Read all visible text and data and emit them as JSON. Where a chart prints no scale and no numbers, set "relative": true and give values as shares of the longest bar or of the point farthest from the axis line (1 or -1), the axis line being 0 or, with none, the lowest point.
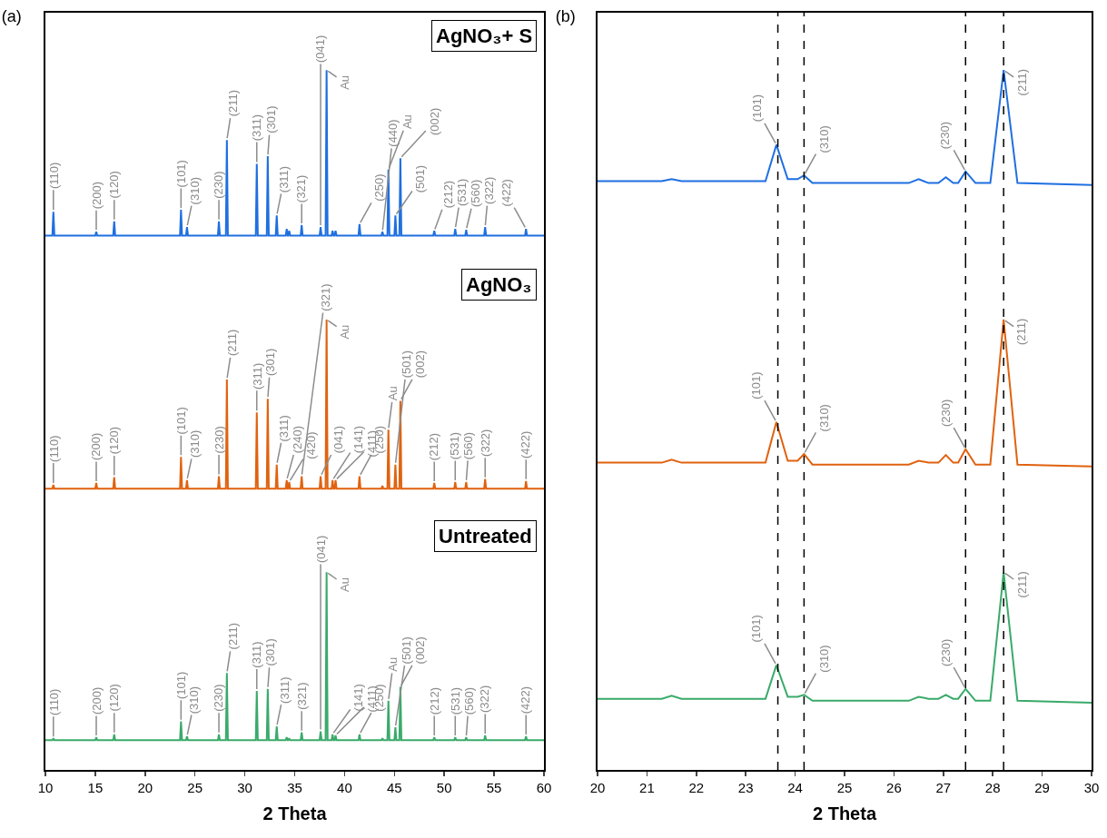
{
  "chart_data": [
    {
      "type": "line",
      "title": "(a)",
      "relative": true,
      "xlim": [
        10,
        60
      ],
      "xticks": [
        10,
        15,
        20,
        25,
        30,
        35,
        40,
        45,
        50,
        55,
        60
      ],
      "tick_labels": false,
      "x": [
        10,
        10.7,
        10.8,
        10.9,
        15,
        15.1,
        15.2,
        16.8,
        16.9,
        17,
        23.5,
        23.6,
        23.7,
        24.1,
        24.2,
        24.3,
        27.3,
        27.4,
        27.5,
        28.1,
        28.2,
        28.3,
        31.1,
        31.2,
        31.3,
        32.2,
        32.3,
        32.4,
        33.1,
        33.2,
        33.3,
        34.1,
        34.2,
        34.3,
        34.35,
        34.45,
        34.55,
        35.6,
        35.7,
        35.8,
        37.5,
        37.6,
        37.7,
        38.1,
        38.2,
        38.3,
        38.7,
        38.8,
        38.9,
        39,
        39.1,
        39.2,
        41.4,
        41.5,
        41.6,
        43.7,
        43.8,
        43.9,
        44.3,
        44.4,
        44.5,
        45,
        45.1,
        45.2,
        45.5,
        45.6,
        45.7,
        48.9,
        49,
        49.1,
        51,
        51.1,
        51.2,
        52.1,
        52.2,
        52.3,
        54,
        54.1,
        54.2,
        58.1,
        58.2,
        58.3,
        60
      ],
      "series": [
        {
          "color": "#1f6fe0",
          "values": [
            0.135,
            0.135,
            0.26,
            0.135,
            0.135,
            0.155,
            0.135,
            0.135,
            0.21,
            0.135,
            0.135,
            0.27,
            0.135,
            0.135,
            0.18,
            0.135,
            0.135,
            0.21,
            0.135,
            0.135,
            0.635,
            0.135,
            0.135,
            0.51,
            0.135,
            0.135,
            0.55,
            0.135,
            0.135,
            0.24,
            0.135,
            0.135,
            0.17,
            0.135,
            0.135,
            0.16,
            0.135,
            0.135,
            0.19,
            0.135,
            0.135,
            0.18,
            0.135,
            0.135,
            1,
            0.135,
            0.135,
            0.16,
            0.135,
            0.135,
            0.16,
            0.135,
            0.135,
            0.195,
            0.135,
            0.135,
            0.155,
            0.135,
            0.135,
            0.48,
            0.135,
            0.135,
            0.24,
            0.135,
            0.135,
            0.54,
            0.135,
            0.135,
            0.16,
            0.135,
            0.135,
            0.17,
            0.135,
            0.135,
            0.165,
            0.135,
            0.135,
            0.18,
            0.135,
            0.135,
            0.17,
            0.135,
            0.135
          ]
        }
      ],
      "annotations": [
        "AgNO₃+ S",
        {
          "text": "(110)",
          "x": 10.8,
          "y": 0.26
        },
        {
          "text": "(200)",
          "x": 15.1,
          "y": 0.155
        },
        {
          "text": "(120)",
          "x": 16.9,
          "y": 0.21
        },
        {
          "text": "(101)",
          "x": 23.6,
          "y": 0.27
        },
        {
          "text": "(310)",
          "x": 24.2,
          "y": 0.18
        },
        {
          "text": "(230)",
          "x": 27.4,
          "y": 0.21
        },
        {
          "text": "(211)",
          "x": 28.2,
          "y": 0.635
        },
        {
          "text": "(311)",
          "x": 31.2,
          "y": 0.51
        },
        {
          "text": "(301)",
          "x": 32.3,
          "y": 0.55
        },
        {
          "text": "(311)",
          "x": 33.2,
          "y": 0.24
        },
        {
          "text": "(321)",
          "x": 35.7,
          "y": 0.19
        },
        {
          "text": "(041)",
          "x": 37.6,
          "y": 0.18
        },
        {
          "text": "Au",
          "x": 38.2,
          "y": 1
        },
        {
          "text": "(250)",
          "x": 41.5,
          "y": 0.195
        },
        {
          "text": "(440)",
          "x": 43.8,
          "y": 0.155
        },
        {
          "text": "Au",
          "x": 44.4,
          "y": 0.48
        },
        {
          "text": "(501)",
          "x": 45.1,
          "y": 0.24
        },
        {
          "text": "(002)",
          "x": 45.6,
          "y": 0.54
        },
        {
          "text": "(212)",
          "x": 49,
          "y": 0.16
        },
        {
          "text": "(531)",
          "x": 51.1,
          "y": 0.17
        },
        {
          "text": "(560)",
          "x": 52.2,
          "y": 0.165
        },
        {
          "text": "(322)",
          "x": 54.1,
          "y": 0.18
        },
        {
          "text": "(422)",
          "x": 58.2,
          "y": 0.17
        }
      ]
    },
    {
      "type": "line",
      "relative": true,
      "xlim": [
        10,
        60
      ],
      "xticks": [
        10,
        15,
        20,
        25,
        30,
        35,
        40,
        45,
        50,
        55,
        60
      ],
      "tick_labels": false,
      "x": [
        10,
        10.7,
        10.8,
        10.9,
        15,
        15.1,
        15.2,
        16.8,
        16.9,
        17,
        23.5,
        23.6,
        23.7,
        24.1,
        24.2,
        24.3,
        27.3,
        27.4,
        27.5,
        28.1,
        28.2,
        28.3,
        31.1,
        31.2,
        31.3,
        32.2,
        32.3,
        32.4,
        33.1,
        33.2,
        33.3,
        34.1,
        34.2,
        34.3,
        34.35,
        34.45,
        34.55,
        35.6,
        35.7,
        35.8,
        37.5,
        37.6,
        37.7,
        38.1,
        38.2,
        38.3,
        38.7,
        38.8,
        38.9,
        39,
        39.1,
        39.2,
        41.4,
        41.5,
        41.6,
        43.7,
        43.8,
        43.9,
        44.3,
        44.4,
        44.5,
        45,
        45.1,
        45.2,
        45.5,
        45.6,
        45.7,
        48.9,
        49,
        49.1,
        51,
        51.1,
        51.2,
        52.1,
        52.2,
        52.3,
        54,
        54.1,
        54.2,
        58.1,
        58.2,
        58.3,
        60
      ],
      "series": [
        {
          "color": "#e0620f",
          "values": [
            0.125,
            0.125,
            0.145,
            0.125,
            0.125,
            0.155,
            0.125,
            0.125,
            0.185,
            0.125,
            0.125,
            0.29,
            0.125,
            0.125,
            0.17,
            0.125,
            0.125,
            0.19,
            0.125,
            0.125,
            0.69,
            0.125,
            0.125,
            0.52,
            0.125,
            0.125,
            0.59,
            0.125,
            0.125,
            0.25,
            0.125,
            0.125,
            0.17,
            0.125,
            0.125,
            0.16,
            0.125,
            0.125,
            0.19,
            0.125,
            0.125,
            0.19,
            0.125,
            0.125,
            1,
            0.125,
            0.125,
            0.17,
            0.125,
            0.125,
            0.17,
            0.125,
            0.125,
            0.19,
            0.125,
            0.125,
            0.14,
            0.125,
            0.125,
            0.43,
            0.125,
            0.125,
            0.25,
            0.125,
            0.125,
            0.58,
            0.125,
            0.125,
            0.155,
            0.125,
            0.125,
            0.16,
            0.125,
            0.125,
            0.16,
            0.125,
            0.125,
            0.175,
            0.125,
            0.125,
            0.165,
            0.125,
            0.125
          ]
        }
      ],
      "annotations": [
        "AgNO₃",
        {
          "text": "(110)",
          "x": 10.8,
          "y": 0.145
        },
        {
          "text": "(200)",
          "x": 15.1,
          "y": 0.155
        },
        {
          "text": "(120)",
          "x": 16.9,
          "y": 0.185
        },
        {
          "text": "(101)",
          "x": 23.6,
          "y": 0.29
        },
        {
          "text": "(310)",
          "x": 24.2,
          "y": 0.17
        },
        {
          "text": "(230)",
          "x": 27.4,
          "y": 0.19
        },
        {
          "text": "(211)",
          "x": 28.2,
          "y": 0.69
        },
        {
          "text": "(311)",
          "x": 31.2,
          "y": 0.52
        },
        {
          "text": "(301)",
          "x": 32.3,
          "y": 0.59
        },
        {
          "text": "(311)",
          "x": 33.2,
          "y": 0.25
        },
        {
          "text": "(240)",
          "x": 34.2,
          "y": 0.17
        },
        {
          "text": "(420)",
          "x": 34.45,
          "y": 0.16
        },
        {
          "text": "(321)",
          "x": 35.7,
          "y": 0.19
        },
        {
          "text": "(041)",
          "x": 37.6,
          "y": 0.19
        },
        {
          "text": "Au",
          "x": 38.2,
          "y": 1
        },
        {
          "text": "(141)",
          "x": 38.8,
          "y": 0.17
        },
        {
          "text": "(411)",
          "x": 39.1,
          "y": 0.17
        },
        {
          "text": "(250)",
          "x": 41.5,
          "y": 0.19
        },
        {
          "text": "Au",
          "x": 44.4,
          "y": 0.43
        },
        {
          "text": "(501)",
          "x": 45.1,
          "y": 0.25
        },
        {
          "text": "(002)",
          "x": 45.6,
          "y": 0.58
        },
        {
          "text": "(212)",
          "x": 49,
          "y": 0.155
        },
        {
          "text": "(531)",
          "x": 51.1,
          "y": 0.16
        },
        {
          "text": "(560)",
          "x": 52.2,
          "y": 0.16
        },
        {
          "text": "(322)",
          "x": 54.1,
          "y": 0.175
        },
        {
          "text": "(422)",
          "x": 58.2,
          "y": 0.165
        }
      ]
    },
    {
      "type": "line",
      "relative": true,
      "xlabel": "2 Theta",
      "xlim": [
        10,
        60
      ],
      "xticks": [
        10,
        15,
        20,
        25,
        30,
        35,
        40,
        45,
        50,
        55,
        60
      ],
      "tick_labels": "x",
      "x": [
        10,
        10.7,
        10.8,
        10.9,
        15,
        15.1,
        15.2,
        16.8,
        16.9,
        17,
        23.5,
        23.6,
        23.7,
        24.1,
        24.2,
        24.3,
        27.3,
        27.4,
        27.5,
        28.1,
        28.2,
        28.3,
        31.1,
        31.2,
        31.3,
        32.2,
        32.3,
        32.4,
        33.1,
        33.2,
        33.3,
        34.1,
        34.2,
        34.3,
        34.35,
        34.45,
        34.55,
        35.6,
        35.7,
        35.8,
        37.5,
        37.6,
        37.7,
        38.1,
        38.2,
        38.3,
        38.7,
        38.8,
        38.9,
        39,
        39.1,
        39.2,
        41.4,
        41.5,
        41.6,
        43.7,
        43.8,
        43.9,
        44.3,
        44.4,
        44.5,
        45,
        45.1,
        45.2,
        45.5,
        45.6,
        45.7,
        48.9,
        49,
        49.1,
        51,
        51.1,
        51.2,
        52.1,
        52.2,
        52.3,
        54,
        54.1,
        54.2,
        58.1,
        58.2,
        58.3,
        60
      ],
      "series": [
        {
          "color": "#3aaa6a",
          "values": [
            0.15,
            0.15,
            0.16,
            0.15,
            0.15,
            0.165,
            0.15,
            0.15,
            0.18,
            0.15,
            0.15,
            0.245,
            0.15,
            0.15,
            0.17,
            0.15,
            0.15,
            0.18,
            0.15,
            0.15,
            0.49,
            0.15,
            0.15,
            0.4,
            0.15,
            0.15,
            0.41,
            0.15,
            0.15,
            0.22,
            0.15,
            0.15,
            0.165,
            0.15,
            0.15,
            0.16,
            0.15,
            0.15,
            0.19,
            0.15,
            0.15,
            0.195,
            0.15,
            0.15,
            1,
            0.15,
            0.15,
            0.18,
            0.15,
            0.15,
            0.175,
            0.15,
            0.15,
            0.18,
            0.15,
            0.15,
            0.16,
            0.15,
            0.15,
            0.35,
            0.15,
            0.15,
            0.215,
            0.15,
            0.15,
            0.42,
            0.15,
            0.15,
            0.165,
            0.15,
            0.15,
            0.165,
            0.15,
            0.15,
            0.165,
            0.15,
            0.15,
            0.175,
            0.15,
            0.15,
            0.17,
            0.15,
            0.15
          ]
        }
      ],
      "annotations": [
        "Untreated",
        {
          "text": "(110)",
          "x": 10.8,
          "y": 0.16
        },
        {
          "text": "(200)",
          "x": 15.1,
          "y": 0.165
        },
        {
          "text": "(120)",
          "x": 16.9,
          "y": 0.18
        },
        {
          "text": "(101)",
          "x": 23.6,
          "y": 0.245
        },
        {
          "text": "(310)",
          "x": 24.2,
          "y": 0.17
        },
        {
          "text": "(230)",
          "x": 27.4,
          "y": 0.18
        },
        {
          "text": "(211)",
          "x": 28.2,
          "y": 0.49
        },
        {
          "text": "(311)",
          "x": 31.2,
          "y": 0.4
        },
        {
          "text": "(301)",
          "x": 32.3,
          "y": 0.41
        },
        {
          "text": "(311)",
          "x": 33.2,
          "y": 0.22
        },
        {
          "text": "(321)",
          "x": 35.7,
          "y": 0.19
        },
        {
          "text": "(041)",
          "x": 37.6,
          "y": 0.195
        },
        {
          "text": "Au",
          "x": 38.2,
          "y": 1
        },
        {
          "text": "(141)",
          "x": 38.8,
          "y": 0.18
        },
        {
          "text": "(411)",
          "x": 39.1,
          "y": 0.175
        },
        {
          "text": "(250)",
          "x": 41.5,
          "y": 0.18
        },
        {
          "text": "Au",
          "x": 44.4,
          "y": 0.35
        },
        {
          "text": "(501)",
          "x": 45.1,
          "y": 0.215
        },
        {
          "text": "(002)",
          "x": 45.6,
          "y": 0.42
        },
        {
          "text": "(212)",
          "x": 49,
          "y": 0.165
        },
        {
          "text": "(531)",
          "x": 51.1,
          "y": 0.165
        },
        {
          "text": "(560)",
          "x": 52.2,
          "y": 0.165
        },
        {
          "text": "(322)",
          "x": 54.1,
          "y": 0.175
        },
        {
          "text": "(422)",
          "x": 58.2,
          "y": 0.17
        }
      ]
    },
    {
      "type": "line",
      "title": "(b)",
      "relative": true,
      "xlim": [
        20,
        30
      ],
      "xticks": [
        20,
        21,
        22,
        23,
        24,
        25,
        26,
        27,
        28,
        29,
        30
      ],
      "tick_labels": false,
      "x": [
        20,
        21.3,
        21.5,
        21.7,
        23.4,
        23.62,
        23.85,
        24.05,
        24.18,
        24.35,
        26.3,
        26.5,
        26.7,
        26.9,
        27.05,
        27.2,
        27.3,
        27.45,
        27.65,
        27.95,
        28.22,
        28.5,
        30
      ],
      "series": [
        {
          "color": "#1f6fe0",
          "values": [
            0.42,
            0.42,
            0.43,
            0.42,
            0.42,
            0.61,
            0.43,
            0.43,
            0.45,
            0.41,
            0.41,
            0.43,
            0.41,
            0.41,
            0.44,
            0.41,
            0.41,
            0.47,
            0.41,
            0.41,
            1,
            0.41,
            0.4
          ]
        }
      ],
      "ref_lines": [
        {
          "axis": "x",
          "value": 23.65,
          "color": "#000000",
          "line_style": "dashed"
        },
        {
          "axis": "x",
          "value": 24.18,
          "color": "#000000",
          "line_style": "dashed"
        },
        {
          "axis": "x",
          "value": 27.45,
          "color": "#000000",
          "line_style": "dashed"
        },
        {
          "axis": "x",
          "value": 28.22,
          "color": "#000000",
          "line_style": "dashed"
        }
      ],
      "annotations": [
        {
          "text": "(101)",
          "x": 23.62,
          "y": 0.61
        },
        {
          "text": "(310)",
          "x": 24.18,
          "y": 0.45
        },
        {
          "text": "(230)",
          "x": 27.45,
          "y": 0.47
        },
        {
          "text": "(211)",
          "x": 28.22,
          "y": 1
        }
      ]
    },
    {
      "type": "line",
      "relative": true,
      "xlim": [
        20,
        30
      ],
      "xticks": [
        20,
        21,
        22,
        23,
        24,
        25,
        26,
        27,
        28,
        29,
        30
      ],
      "tick_labels": false,
      "x": [
        20,
        21.3,
        21.5,
        21.7,
        23.4,
        23.62,
        23.85,
        24.05,
        24.18,
        24.35,
        26.3,
        26.5,
        26.7,
        26.9,
        27.05,
        27.2,
        27.3,
        27.45,
        27.65,
        27.95,
        28.22,
        28.5,
        30
      ],
      "series": [
        {
          "color": "#e0620f",
          "values": [
            0.26,
            0.26,
            0.275,
            0.26,
            0.26,
            0.47,
            0.27,
            0.27,
            0.305,
            0.25,
            0.25,
            0.27,
            0.26,
            0.26,
            0.3,
            0.26,
            0.26,
            0.33,
            0.25,
            0.25,
            1,
            0.25,
            0.24
          ]
        }
      ],
      "ref_lines": [
        {
          "axis": "x",
          "value": 23.65,
          "color": "#000000",
          "line_style": "dashed"
        },
        {
          "axis": "x",
          "value": 24.18,
          "color": "#000000",
          "line_style": "dashed"
        },
        {
          "axis": "x",
          "value": 27.45,
          "color": "#000000",
          "line_style": "dashed"
        },
        {
          "axis": "x",
          "value": 28.22,
          "color": "#000000",
          "line_style": "dashed"
        }
      ],
      "annotations": [
        {
          "text": "(101)",
          "x": 23.62,
          "y": 0.47
        },
        {
          "text": "(310)",
          "x": 24.18,
          "y": 0.305
        },
        {
          "text": "(230)",
          "x": 27.45,
          "y": 0.33
        },
        {
          "text": "(211)",
          "x": 28.22,
          "y": 1
        }
      ]
    },
    {
      "type": "line",
      "relative": true,
      "xlabel": "2 Theta",
      "xlim": [
        20,
        30
      ],
      "xticks": [
        20,
        21,
        22,
        23,
        24,
        25,
        26,
        27,
        28,
        29,
        30
      ],
      "tick_labels": "x",
      "x": [
        20,
        21.3,
        21.5,
        21.7,
        23.4,
        23.62,
        23.85,
        24.05,
        24.18,
        24.35,
        26.3,
        26.5,
        26.7,
        26.9,
        27.05,
        27.2,
        27.3,
        27.45,
        27.65,
        27.95,
        28.22,
        28.5,
        30
      ],
      "series": [
        {
          "color": "#3aaa6a",
          "values": [
            0.36,
            0.36,
            0.375,
            0.36,
            0.36,
            0.53,
            0.37,
            0.37,
            0.38,
            0.35,
            0.35,
            0.37,
            0.36,
            0.36,
            0.38,
            0.36,
            0.36,
            0.41,
            0.35,
            0.35,
            1,
            0.35,
            0.34
          ]
        }
      ],
      "ref_lines": [
        {
          "axis": "x",
          "value": 23.65,
          "color": "#000000",
          "line_style": "dashed"
        },
        {
          "axis": "x",
          "value": 24.18,
          "color": "#000000",
          "line_style": "dashed"
        },
        {
          "axis": "x",
          "value": 27.45,
          "color": "#000000",
          "line_style": "dashed"
        },
        {
          "axis": "x",
          "value": 28.22,
          "color": "#000000",
          "line_style": "dashed"
        }
      ],
      "annotations": [
        {
          "text": "(101)",
          "x": 23.62,
          "y": 0.53
        },
        {
          "text": "(310)",
          "x": 24.18,
          "y": 0.38
        },
        {
          "text": "(230)",
          "x": 27.45,
          "y": 0.41
        },
        {
          "text": "(211)",
          "x": 28.22,
          "y": 1
        }
      ]
    }
  ]
}
